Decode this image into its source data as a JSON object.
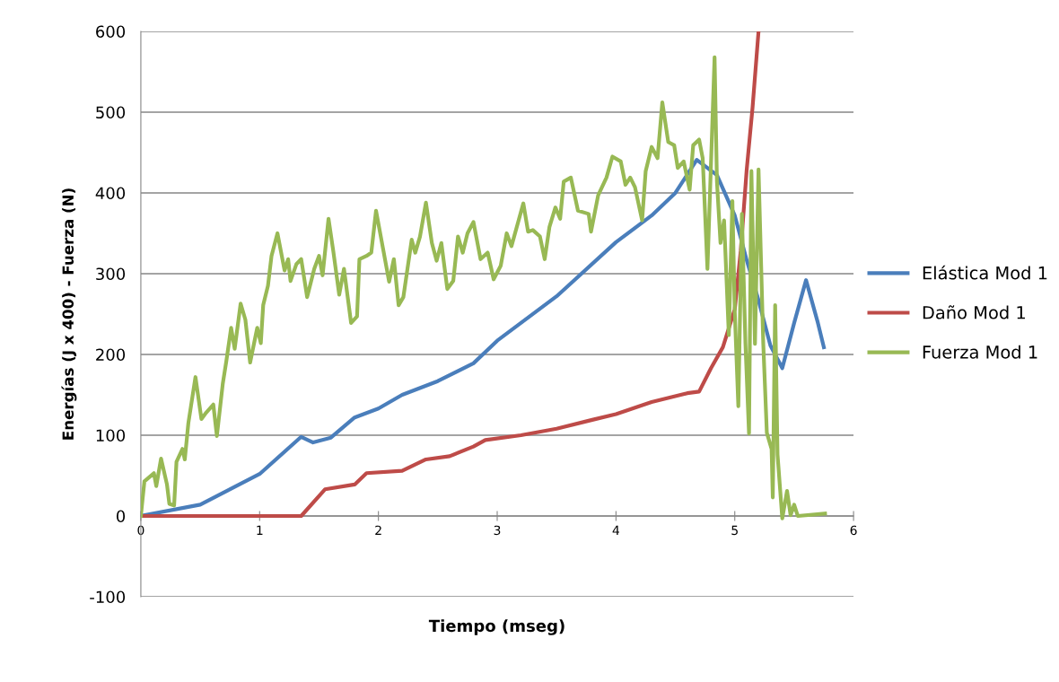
{
  "chart_data": {
    "type": "line",
    "xlabel": "Tiempo (mseg)",
    "ylabel": "Energías (J x 400) - Fuerza (N)",
    "xlim": [
      0,
      6
    ],
    "xticks": [
      0,
      1,
      2,
      3,
      4,
      5,
      6
    ],
    "ylim": [
      -100,
      600
    ],
    "yticks": [
      -100,
      0,
      100,
      200,
      300,
      400,
      500,
      600
    ],
    "grid": "y",
    "legend": "right",
    "marker": "none",
    "line_style": "solid",
    "series": [
      {
        "name": "Elástica Mod 1",
        "color": "#4a7ebb",
        "x": [
          0,
          0.5,
          1.0,
          1.35,
          1.45,
          1.6,
          1.8,
          2.0,
          2.2,
          2.5,
          2.8,
          3.0,
          3.5,
          4.0,
          4.3,
          4.5,
          4.68,
          4.85,
          5.0,
          5.1,
          5.2,
          5.3,
          5.4,
          5.5,
          5.6,
          5.7,
          5.75
        ],
        "values": [
          0,
          14,
          52,
          98,
          91,
          97,
          122,
          133,
          150,
          167,
          189,
          217,
          272,
          339,
          372,
          400,
          441,
          422,
          372,
          317,
          267,
          211,
          183,
          239,
          292,
          239,
          209
        ]
      },
      {
        "name": "Daño Mod 1",
        "color": "#be4b48",
        "x": [
          0,
          1.35,
          1.55,
          1.8,
          1.9,
          2.2,
          2.4,
          2.6,
          2.8,
          2.9,
          3.2,
          3.5,
          3.8,
          4.0,
          4.3,
          4.6,
          4.7,
          4.8,
          4.9,
          5.0,
          5.05,
          5.1,
          5.15,
          5.2
        ],
        "values": [
          0,
          0,
          33,
          39,
          53,
          56,
          70,
          74,
          86,
          94,
          100,
          108,
          119,
          126,
          141,
          152,
          154,
          183,
          209,
          256,
          328,
          428,
          506,
          600
        ]
      },
      {
        "name": "Fuerza Mod 1",
        "color": "#98b954",
        "x": [
          0,
          0.03,
          0.11,
          0.13,
          0.17,
          0.22,
          0.24,
          0.28,
          0.3,
          0.35,
          0.37,
          0.4,
          0.46,
          0.51,
          0.55,
          0.61,
          0.64,
          0.69,
          0.72,
          0.76,
          0.79,
          0.84,
          0.88,
          0.92,
          0.98,
          1.01,
          1.03,
          1.07,
          1.1,
          1.15,
          1.21,
          1.24,
          1.26,
          1.31,
          1.35,
          1.4,
          1.46,
          1.5,
          1.53,
          1.58,
          1.62,
          1.67,
          1.71,
          1.77,
          1.82,
          1.84,
          1.9,
          1.94,
          1.98,
          2.04,
          2.09,
          2.13,
          2.17,
          2.21,
          2.28,
          2.31,
          2.35,
          2.4,
          2.45,
          2.49,
          2.53,
          2.58,
          2.63,
          2.67,
          2.71,
          2.75,
          2.8,
          2.86,
          2.92,
          2.97,
          3.03,
          3.08,
          3.12,
          3.22,
          3.26,
          3.3,
          3.36,
          3.4,
          3.44,
          3.49,
          3.53,
          3.56,
          3.62,
          3.68,
          3.77,
          3.79,
          3.85,
          3.92,
          3.97,
          4.04,
          4.08,
          4.12,
          4.16,
          4.22,
          4.25,
          4.3,
          4.35,
          4.39,
          4.44,
          4.49,
          4.52,
          4.57,
          4.62,
          4.65,
          4.7,
          4.73,
          4.77,
          4.83,
          4.85,
          4.88,
          4.91,
          4.95,
          4.98,
          5.0,
          5.03,
          5.06,
          5.09,
          5.12,
          5.14,
          5.17,
          5.2,
          5.24,
          5.27,
          5.31,
          5.32,
          5.34,
          5.36,
          5.4,
          5.44,
          5.47,
          5.5,
          5.53,
          5.76
        ],
        "values": [
          0,
          43,
          53,
          37,
          71,
          39,
          15,
          13,
          67,
          83,
          70,
          115,
          172,
          120,
          128,
          138,
          99,
          164,
          192,
          233,
          207,
          263,
          243,
          190,
          233,
          214,
          261,
          285,
          322,
          350,
          304,
          318,
          291,
          312,
          318,
          271,
          306,
          322,
          298,
          368,
          328,
          274,
          306,
          239,
          247,
          318,
          322,
          326,
          378,
          330,
          290,
          318,
          261,
          271,
          342,
          326,
          346,
          388,
          338,
          316,
          338,
          281,
          291,
          346,
          326,
          350,
          364,
          318,
          326,
          293,
          310,
          350,
          334,
          387,
          352,
          354,
          346,
          318,
          358,
          382,
          368,
          414,
          419,
          378,
          374,
          352,
          397,
          419,
          445,
          439,
          410,
          419,
          407,
          366,
          427,
          457,
          443,
          512,
          463,
          459,
          431,
          439,
          404,
          459,
          466,
          443,
          306,
          568,
          414,
          338,
          366,
          224,
          390,
          253,
          136,
          374,
          213,
          102,
          427,
          213,
          429,
          213,
          103,
          83,
          23,
          261,
          76,
          -3,
          31,
          1,
          14,
          0,
          3
        ]
      }
    ]
  }
}
